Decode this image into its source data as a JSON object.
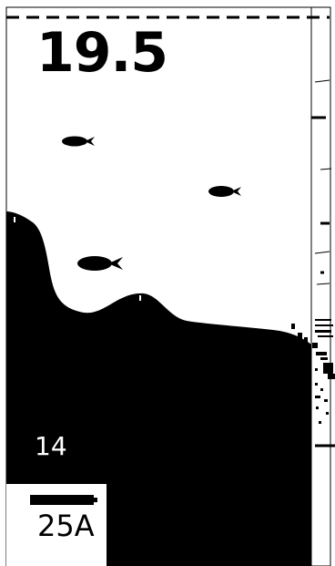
{
  "display": {
    "depth": "19.5",
    "range_marker": "14",
    "zoom_label": "25A"
  },
  "icons": {
    "fish": "fish-icon"
  },
  "colors": {
    "background": "#ffffff",
    "sonar": "#000000"
  }
}
